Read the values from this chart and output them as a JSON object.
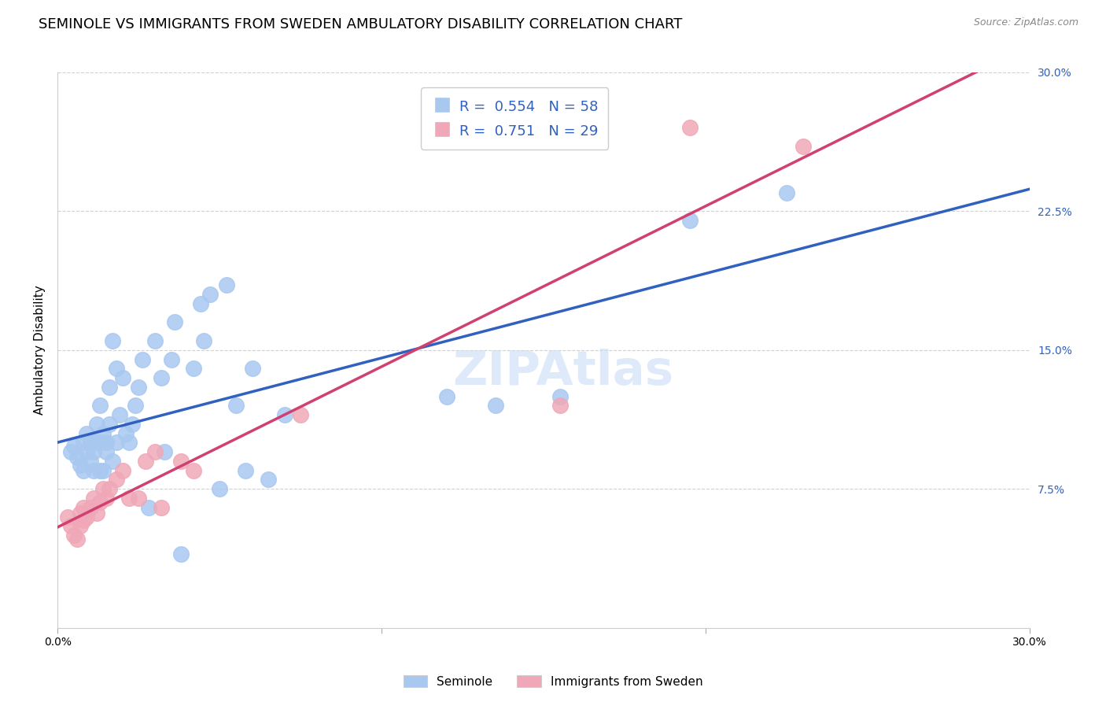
{
  "title": "SEMINOLE VS IMMIGRANTS FROM SWEDEN AMBULATORY DISABILITY CORRELATION CHART",
  "source": "Source: ZipAtlas.com",
  "ylabel": "Ambulatory Disability",
  "xlim": [
    0.0,
    0.3
  ],
  "ylim": [
    0.0,
    0.3
  ],
  "blue_color": "#a8c8f0",
  "pink_color": "#f0a8b8",
  "blue_line_color": "#3060c0",
  "pink_line_color": "#d04070",
  "blue_R": 0.554,
  "blue_N": 58,
  "pink_R": 0.751,
  "pink_N": 29,
  "seminole_x": [
    0.004,
    0.005,
    0.006,
    0.007,
    0.008,
    0.008,
    0.009,
    0.009,
    0.01,
    0.01,
    0.011,
    0.011,
    0.012,
    0.012,
    0.013,
    0.013,
    0.013,
    0.014,
    0.014,
    0.015,
    0.015,
    0.016,
    0.016,
    0.017,
    0.017,
    0.018,
    0.018,
    0.019,
    0.02,
    0.021,
    0.022,
    0.023,
    0.024,
    0.025,
    0.026,
    0.028,
    0.03,
    0.032,
    0.033,
    0.035,
    0.036,
    0.038,
    0.042,
    0.044,
    0.045,
    0.047,
    0.05,
    0.052,
    0.055,
    0.058,
    0.06,
    0.065,
    0.07,
    0.12,
    0.135,
    0.155,
    0.195,
    0.225
  ],
  "seminole_y": [
    0.095,
    0.098,
    0.092,
    0.088,
    0.085,
    0.1,
    0.095,
    0.105,
    0.09,
    0.1,
    0.085,
    0.095,
    0.1,
    0.11,
    0.085,
    0.12,
    0.1,
    0.105,
    0.085,
    0.1,
    0.095,
    0.11,
    0.13,
    0.155,
    0.09,
    0.1,
    0.14,
    0.115,
    0.135,
    0.105,
    0.1,
    0.11,
    0.12,
    0.13,
    0.145,
    0.065,
    0.155,
    0.135,
    0.095,
    0.145,
    0.165,
    0.04,
    0.14,
    0.175,
    0.155,
    0.18,
    0.075,
    0.185,
    0.12,
    0.085,
    0.14,
    0.08,
    0.115,
    0.125,
    0.12,
    0.125,
    0.22,
    0.235
  ],
  "sweden_x": [
    0.003,
    0.004,
    0.005,
    0.006,
    0.007,
    0.007,
    0.008,
    0.008,
    0.009,
    0.01,
    0.011,
    0.012,
    0.013,
    0.014,
    0.015,
    0.016,
    0.018,
    0.02,
    0.022,
    0.025,
    0.027,
    0.03,
    0.032,
    0.038,
    0.042,
    0.075,
    0.155,
    0.195,
    0.23
  ],
  "sweden_y": [
    0.06,
    0.055,
    0.05,
    0.048,
    0.055,
    0.062,
    0.058,
    0.065,
    0.06,
    0.065,
    0.07,
    0.062,
    0.068,
    0.075,
    0.07,
    0.075,
    0.08,
    0.085,
    0.07,
    0.07,
    0.09,
    0.095,
    0.065,
    0.09,
    0.085,
    0.115,
    0.12,
    0.27,
    0.26
  ],
  "title_fontsize": 13,
  "axis_label_fontsize": 11,
  "tick_fontsize": 10,
  "legend_fontsize": 13
}
